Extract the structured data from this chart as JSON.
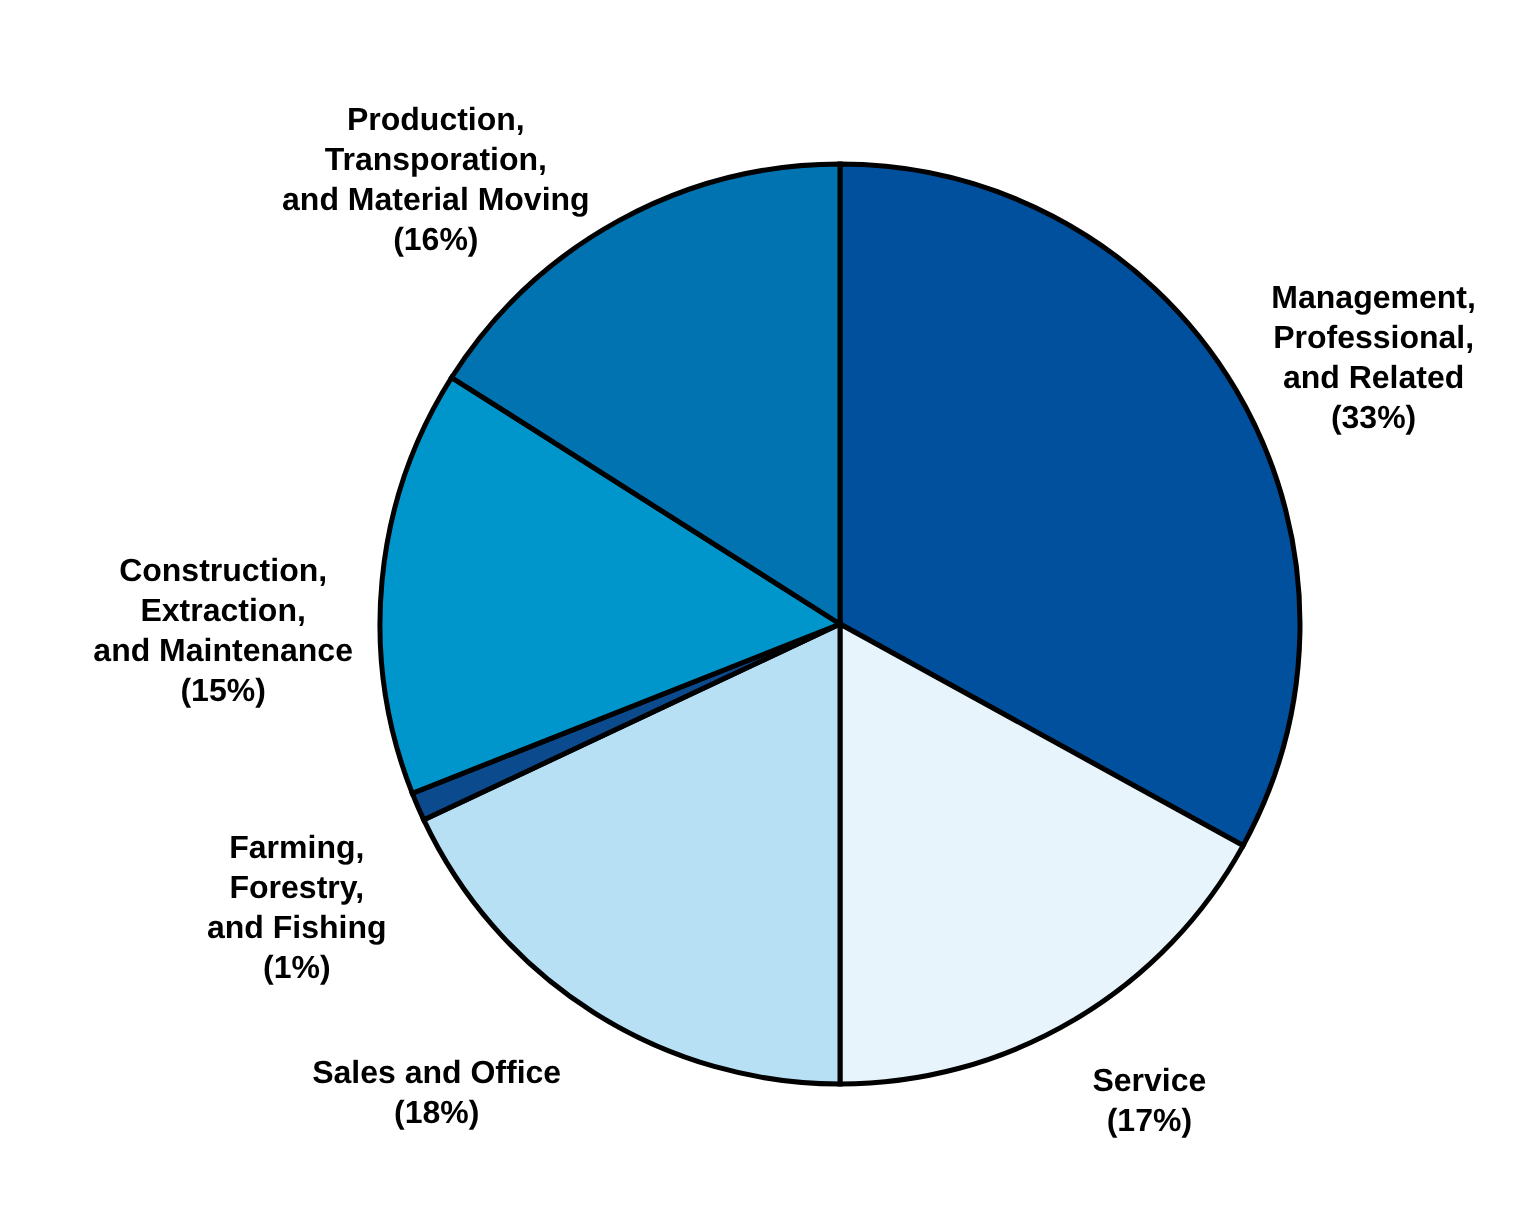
{
  "chart_data": {
    "type": "pie",
    "categories": [
      "Management, Professional, and Related",
      "Service",
      "Sales and Office",
      "Farming, Forestry, and Fishing",
      "Construction, Extraction, and Maintenance",
      "Production, Transporation, and Material Moving"
    ],
    "values": [
      33,
      17,
      18,
      1,
      15,
      16
    ],
    "value_labels": [
      "(33%)",
      "(17%)",
      "(18%)",
      "(1%)",
      "(15%)",
      "(16%)"
    ],
    "colors": [
      "#00509e",
      "#e8f4fc",
      "#b8e0f5",
      "#0b4a8c",
      "#0096cc",
      "#0073b0"
    ]
  }
}
